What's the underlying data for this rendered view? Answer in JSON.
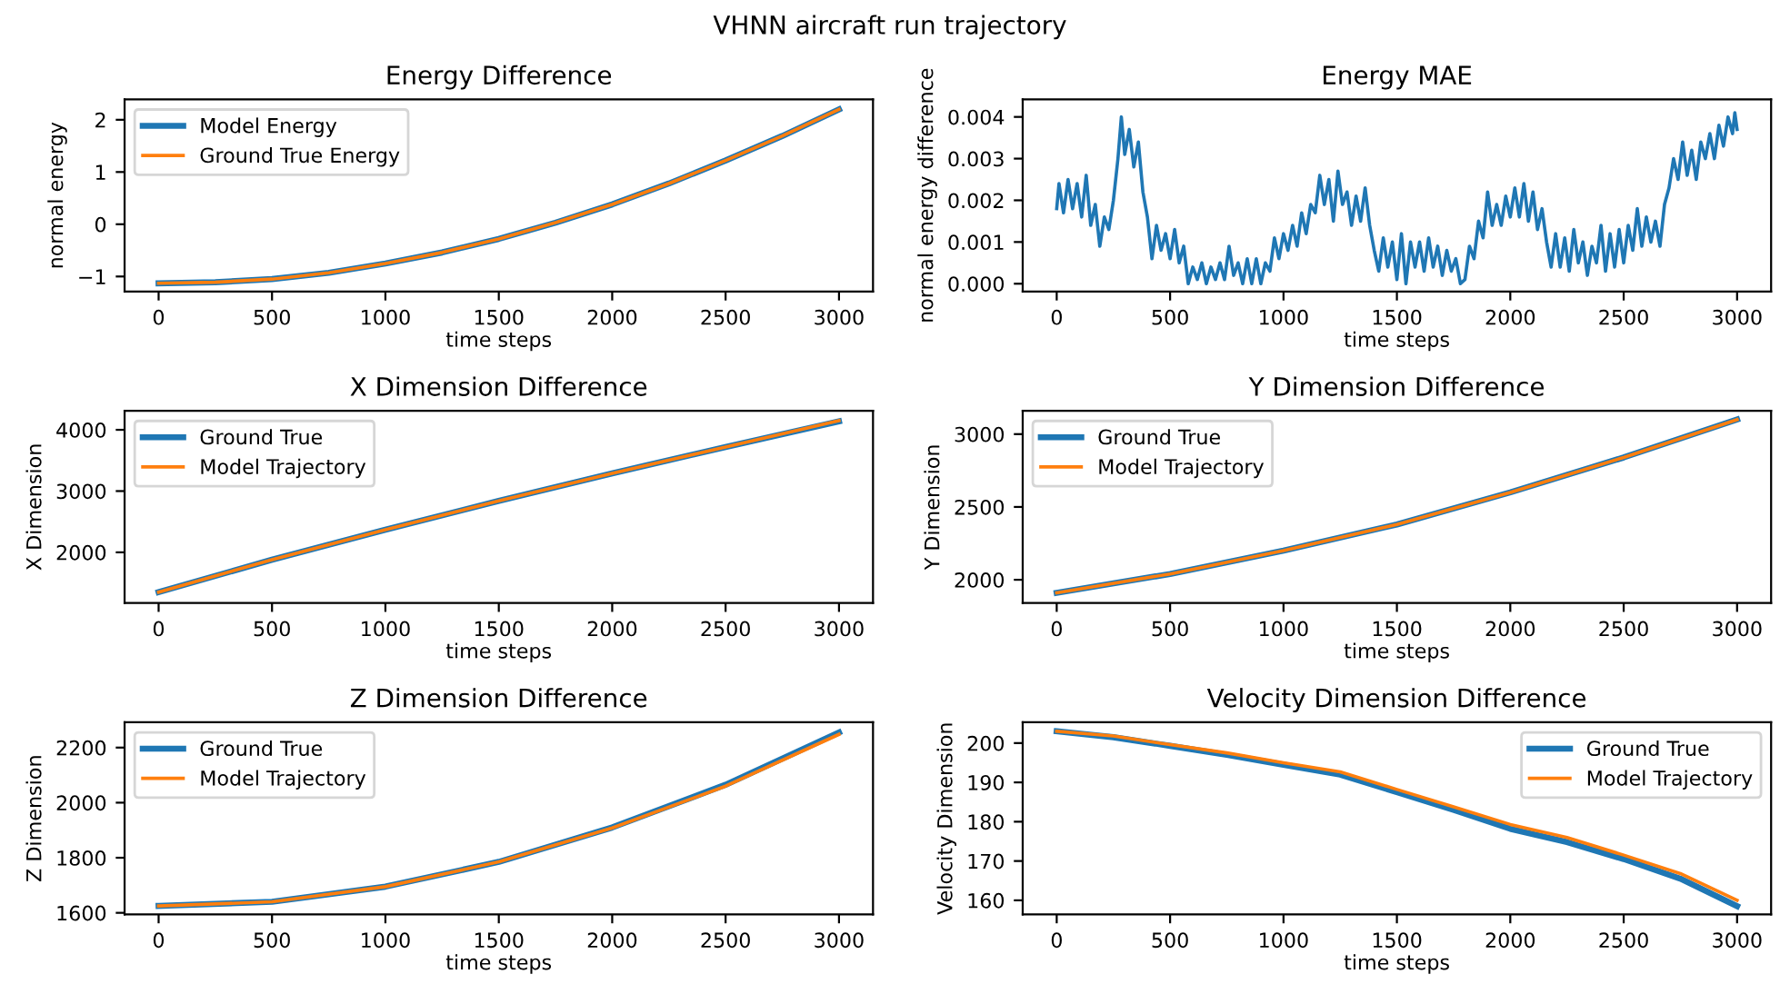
{
  "chart_data": [
    {
      "type": "line",
      "title": "Energy Difference",
      "xlabel": "time steps",
      "ylabel": "normal energy",
      "annotations": [
        "VHNN aircraft run trajectory"
      ],
      "legend": "top left",
      "grid": false,
      "xlim": [
        -150,
        3150
      ],
      "ylim": [
        -1.29,
        2.39
      ],
      "xticks": [
        0,
        500,
        1000,
        1500,
        2000,
        2500,
        3000
      ],
      "yticks": [
        {
          "value": -1,
          "label": "−1"
        },
        0,
        1,
        2
      ],
      "x": [
        0,
        250,
        500,
        750,
        1000,
        1250,
        1500,
        1750,
        2000,
        2250,
        2500,
        2750,
        3000
      ],
      "series": [
        {
          "name": "Model Energy",
          "color": "#1f77b4",
          "values": [
            -1.13,
            -1.11,
            -1.05,
            -0.93,
            -0.75,
            -0.54,
            -0.28,
            0.03,
            0.38,
            0.78,
            1.22,
            1.69,
            2.2
          ]
        },
        {
          "name": "Ground True Energy",
          "color": "#ff7f0e",
          "values": [
            -1.13,
            -1.11,
            -1.05,
            -0.93,
            -0.75,
            -0.54,
            -0.28,
            0.03,
            0.38,
            0.78,
            1.22,
            1.69,
            2.2
          ]
        }
      ]
    },
    {
      "type": "line",
      "title": "Energy MAE",
      "xlabel": "time steps",
      "ylabel": "normal energy difference",
      "grid": false,
      "xlim": [
        -150,
        3150
      ],
      "ylim": [
        -0.00019,
        0.00442
      ],
      "xticks": [
        0,
        500,
        1000,
        1500,
        2000,
        2500,
        3000
      ],
      "yticks": [
        {
          "value": 0,
          "label": "0.000"
        },
        {
          "value": 0.001,
          "label": "0.001"
        },
        {
          "value": 0.002,
          "label": "0.002"
        },
        {
          "value": 0.003,
          "label": "0.003"
        },
        {
          "value": 0.004,
          "label": "0.004"
        }
      ],
      "x": [
        0,
        10,
        30,
        50,
        70,
        90,
        110,
        130,
        150,
        170,
        190,
        210,
        230,
        250,
        270,
        285,
        300,
        320,
        340,
        360,
        380,
        400,
        420,
        440,
        460,
        480,
        500,
        520,
        540,
        560,
        580,
        600,
        620,
        640,
        660,
        680,
        700,
        720,
        740,
        760,
        780,
        800,
        820,
        840,
        860,
        880,
        900,
        920,
        940,
        960,
        980,
        1000,
        1020,
        1040,
        1060,
        1080,
        1100,
        1120,
        1140,
        1160,
        1180,
        1200,
        1220,
        1240,
        1260,
        1280,
        1300,
        1320,
        1340,
        1360,
        1380,
        1400,
        1420,
        1440,
        1460,
        1480,
        1500,
        1520,
        1540,
        1560,
        1580,
        1600,
        1620,
        1640,
        1660,
        1680,
        1700,
        1720,
        1740,
        1760,
        1780,
        1800,
        1820,
        1840,
        1860,
        1880,
        1900,
        1920,
        1940,
        1960,
        1980,
        2000,
        2020,
        2040,
        2060,
        2080,
        2100,
        2120,
        2140,
        2160,
        2180,
        2200,
        2220,
        2240,
        2260,
        2280,
        2300,
        2320,
        2340,
        2360,
        2380,
        2400,
        2420,
        2440,
        2460,
        2480,
        2500,
        2520,
        2540,
        2560,
        2580,
        2600,
        2620,
        2640,
        2660,
        2680,
        2700,
        2720,
        2740,
        2760,
        2780,
        2800,
        2820,
        2840,
        2860,
        2880,
        2900,
        2920,
        2940,
        2960,
        2980,
        2990,
        3000
      ],
      "series": [
        {
          "color": "#1f77b4",
          "values": [
            0.0018,
            0.0024,
            0.0017,
            0.0025,
            0.0018,
            0.0024,
            0.0016,
            0.0026,
            0.0014,
            0.0019,
            0.0009,
            0.0016,
            0.0013,
            0.002,
            0.003,
            0.004,
            0.0031,
            0.0037,
            0.0028,
            0.0034,
            0.0022,
            0.0016,
            0.0006,
            0.0014,
            0.0008,
            0.0012,
            0.0006,
            0.0013,
            0.0005,
            0.0009,
            0.0,
            0.0004,
            0.0001,
            0.0005,
            0.0,
            0.0004,
            0.0001,
            0.0005,
            0.0001,
            0.0009,
            0.0002,
            0.0005,
            0.0,
            0.0006,
            0.0,
            0.0006,
            0.0,
            0.0005,
            0.0003,
            0.0011,
            0.0006,
            0.0012,
            0.0008,
            0.0014,
            0.0009,
            0.0017,
            0.0012,
            0.0019,
            0.0017,
            0.0026,
            0.0019,
            0.0025,
            0.0015,
            0.0027,
            0.0019,
            0.0022,
            0.0014,
            0.0021,
            0.0015,
            0.0023,
            0.0014,
            0.0008,
            0.0003,
            0.0011,
            0.0004,
            0.001,
            0.0001,
            0.0012,
            0.0,
            0.001,
            0.0004,
            0.001,
            0.0003,
            0.0011,
            0.0004,
            0.0009,
            0.0002,
            0.0008,
            0.0003,
            0.0006,
            0.0,
            0.0001,
            0.0009,
            0.0006,
            0.0015,
            0.0011,
            0.0022,
            0.0014,
            0.0019,
            0.0014,
            0.0021,
            0.0016,
            0.0023,
            0.0016,
            0.0024,
            0.0015,
            0.0022,
            0.0013,
            0.0018,
            0.001,
            0.0004,
            0.0012,
            0.0004,
            0.0011,
            0.0003,
            0.0013,
            0.0005,
            0.001,
            0.0002,
            0.0009,
            0.0005,
            0.0014,
            0.0003,
            0.0012,
            0.0004,
            0.0013,
            0.0005,
            0.0014,
            0.0008,
            0.0018,
            0.0009,
            0.0016,
            0.001,
            0.0015,
            0.0009,
            0.0019,
            0.0023,
            0.003,
            0.0025,
            0.0034,
            0.0026,
            0.0032,
            0.0025,
            0.0034,
            0.003,
            0.0036,
            0.003,
            0.0038,
            0.0033,
            0.004,
            0.0036,
            0.0041,
            0.0037
          ]
        }
      ]
    },
    {
      "type": "line",
      "title": "X Dimension Difference",
      "xlabel": "time steps",
      "ylabel": "X Dimension",
      "legend": "top left",
      "grid": false,
      "xlim": [
        -150,
        3150
      ],
      "ylim": [
        1172,
        4310
      ],
      "xticks": [
        0,
        500,
        1000,
        1500,
        2000,
        2500,
        3000
      ],
      "yticks": [
        2000,
        3000,
        4000
      ],
      "x": [
        0,
        500,
        1000,
        1500,
        2000,
        2500,
        3000
      ],
      "series": [
        {
          "name": "Ground True",
          "color": "#1f77b4",
          "values": [
            1350,
            1880,
            2370,
            2840,
            3290,
            3720,
            4140
          ]
        },
        {
          "name": "Model Trajectory",
          "color": "#ff7f0e",
          "values": [
            1350,
            1880,
            2370,
            2840,
            3290,
            3720,
            4150
          ]
        }
      ]
    },
    {
      "type": "line",
      "title": "Y Dimension Difference",
      "xlabel": "time steps",
      "ylabel": "Y Dimension",
      "legend": "top left",
      "grid": false,
      "xlim": [
        -150,
        3150
      ],
      "ylim": [
        1840,
        3160
      ],
      "xticks": [
        0,
        500,
        1000,
        1500,
        2000,
        2500,
        3000
      ],
      "yticks": [
        2000,
        2500,
        3000
      ],
      "x": [
        0,
        500,
        1000,
        1500,
        2000,
        2500,
        3000
      ],
      "series": [
        {
          "name": "Ground True",
          "color": "#1f77b4",
          "values": [
            1910,
            2040,
            2200,
            2380,
            2600,
            2840,
            3100
          ]
        },
        {
          "name": "Model Trajectory",
          "color": "#ff7f0e",
          "values": [
            1910,
            2040,
            2200,
            2380,
            2600,
            2840,
            3100
          ]
        }
      ]
    },
    {
      "type": "line",
      "title": "Z Dimension Difference",
      "xlabel": "time steps",
      "ylabel": "Z Dimension",
      "legend": "top left",
      "grid": false,
      "xlim": [
        -150,
        3150
      ],
      "ylim": [
        1594,
        2292
      ],
      "xticks": [
        0,
        500,
        1000,
        1500,
        2000,
        2500,
        3000
      ],
      "yticks": [
        1600,
        1800,
        2000,
        2200
      ],
      "x": [
        0,
        500,
        1000,
        1500,
        2000,
        2500,
        3000
      ],
      "series": [
        {
          "name": "Ground True",
          "color": "#1f77b4",
          "values": [
            1625,
            1640,
            1695,
            1785,
            1910,
            2065,
            2255
          ]
        },
        {
          "name": "Model Trajectory",
          "color": "#ff7f0e",
          "values": [
            1625,
            1640,
            1695,
            1785,
            1908,
            2060,
            2248
          ]
        }
      ]
    },
    {
      "type": "line",
      "title": "Velocity Dimension Difference",
      "xlabel": "time steps",
      "ylabel": "Velocity Dimension",
      "legend": "top right",
      "grid": false,
      "xlim": [
        -150,
        3150
      ],
      "ylim": [
        156.4,
        205.3
      ],
      "xticks": [
        0,
        500,
        1000,
        1500,
        2000,
        2500,
        3000
      ],
      "yticks": [
        160,
        170,
        180,
        190,
        200
      ],
      "x": [
        0,
        250,
        500,
        750,
        1000,
        1250,
        1500,
        1750,
        2000,
        2250,
        2500,
        2750,
        3000
      ],
      "series": [
        {
          "name": "Ground True",
          "color": "#1f77b4",
          "values": [
            203,
            201.5,
            199.3,
            197,
            194.5,
            192,
            187.5,
            183,
            178.2,
            174.8,
            170.5,
            165.5,
            158.5
          ]
        },
        {
          "name": "Model Trajectory",
          "color": "#ff7f0e",
          "values": [
            203,
            201.8,
            199.6,
            197.5,
            195,
            192.7,
            188.2,
            183.8,
            179.3,
            176,
            171.5,
            166.8,
            160
          ]
        }
      ]
    }
  ]
}
